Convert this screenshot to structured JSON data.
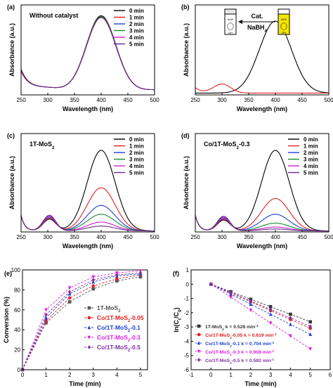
{
  "colors": {
    "0 min": "#000000",
    "1 min": "#e02020",
    "2 min": "#1f3fd8",
    "3 min": "#1a8a3a",
    "4 min": "#d020d0",
    "5 min": "#6a2a8a"
  },
  "chart_data": [
    {
      "panel": "(a)",
      "type": "line",
      "inset_title": "Without catalyst",
      "xlabel": "Wavelength (nm)",
      "ylabel": "Absorbance (a.u.)",
      "xlim": [
        250,
        500
      ],
      "ylim": [
        0,
        1
      ],
      "xticks": [
        "250",
        "300",
        "350",
        "400",
        "450",
        "500"
      ],
      "legend": [
        "0 min",
        "1 min",
        "2 min",
        "3 min",
        "4 min",
        "5 min"
      ],
      "legend_position": "top-right",
      "series": [
        {
          "name": "0 min",
          "peak": 0.86,
          "peak_x": 400,
          "width": 33,
          "baseline": 0.07,
          "dip": 0.05,
          "shoulder_x": 250,
          "start": 0.22
        },
        {
          "name": "1 min",
          "peak": 0.85,
          "peak_x": 400,
          "width": 33,
          "baseline": 0.07,
          "dip": 0.05,
          "shoulder_x": 250,
          "start": 0.21
        },
        {
          "name": "2 min",
          "peak": 0.84,
          "peak_x": 400,
          "width": 33,
          "baseline": 0.07,
          "dip": 0.06,
          "shoulder_x": 250,
          "start": 0.2
        },
        {
          "name": "3 min",
          "peak": 0.85,
          "peak_x": 400,
          "width": 33,
          "baseline": 0.07,
          "dip": 0.06,
          "shoulder_x": 250,
          "start": 0.2
        },
        {
          "name": "4 min",
          "peak": 0.84,
          "peak_x": 400,
          "width": 33,
          "baseline": 0.07,
          "dip": 0.05,
          "shoulder_x": 250,
          "start": 0.2
        },
        {
          "name": "5 min",
          "peak": 0.84,
          "peak_x": 400,
          "width": 33,
          "baseline": 0.07,
          "dip": 0.05,
          "shoulder_x": 250,
          "start": 0.2
        }
      ]
    },
    {
      "panel": "(b)",
      "type": "line",
      "xlabel": "Wavelength (nm)",
      "ylabel": "Absorbance (a.u.)",
      "xlim": [
        250,
        500
      ],
      "ylim": [
        0,
        1
      ],
      "xticks": [
        "250",
        "300",
        "350",
        "400",
        "450",
        "500"
      ],
      "annotation": {
        "reagent_top": "Cat.",
        "reagent_bottom": "NaBH4",
        "vial_label": "NO2",
        "vial_bottom": "OH",
        "product_vial_label": "NH2"
      },
      "series": [
        {
          "name": "reactant",
          "color": "#000000",
          "peak": 0.8,
          "peak_x": 400,
          "width": 33
        },
        {
          "name": "product",
          "color": "#e02020",
          "peak": 0.1,
          "peak_x": 300,
          "width": 18
        }
      ]
    },
    {
      "panel": "(c)",
      "type": "line",
      "inset_title": "1T-MoS2",
      "xlabel": "Wavelength (nm)",
      "ylabel": "Absorbance (a.u.)",
      "xlim": [
        250,
        500
      ],
      "ylim": [
        0,
        1
      ],
      "xticks": [
        "250",
        "300",
        "350",
        "400",
        "450",
        "500"
      ],
      "legend": [
        "0 min",
        "1 min",
        "2 min",
        "3 min",
        "4 min",
        "5 min"
      ],
      "legend_position": "top-right",
      "series": [
        {
          "name": "0 min",
          "peak": 0.82,
          "small_peak": 0.12
        },
        {
          "name": "1 min",
          "peak": 0.44,
          "small_peak": 0.13
        },
        {
          "name": "2 min",
          "peak": 0.26,
          "small_peak": 0.14
        },
        {
          "name": "3 min",
          "peak": 0.17,
          "small_peak": 0.15
        },
        {
          "name": "4 min",
          "peak": 0.09,
          "small_peak": 0.15
        },
        {
          "name": "5 min",
          "peak": 0.05,
          "small_peak": 0.16
        }
      ]
    },
    {
      "panel": "(d)",
      "type": "line",
      "inset_title": "Co/1T-MoS2-0.3",
      "xlabel": "Wavelength (nm)",
      "ylabel": "Absorbance (a.u.)",
      "xlim": [
        250,
        500
      ],
      "ylim": [
        0,
        1
      ],
      "xticks": [
        "250",
        "300",
        "350",
        "400",
        "450",
        "500"
      ],
      "legend": [
        "0 min",
        "1 min",
        "2 min",
        "3 min",
        "4 min",
        "5 min"
      ],
      "legend_position": "top-right",
      "series": [
        {
          "name": "0 min",
          "peak": 0.82,
          "small_peak": 0.11
        },
        {
          "name": "1 min",
          "peak": 0.33,
          "small_peak": 0.12
        },
        {
          "name": "2 min",
          "peak": 0.17,
          "small_peak": 0.13
        },
        {
          "name": "3 min",
          "peak": 0.08,
          "small_peak": 0.14
        },
        {
          "name": "4 min",
          "peak": 0.04,
          "small_peak": 0.14
        },
        {
          "name": "5 min",
          "peak": 0.02,
          "small_peak": 0.15
        }
      ]
    },
    {
      "panel": "(e)",
      "type": "line",
      "xlabel": "Time (min)",
      "ylabel": "Conversion (%)",
      "xlim": [
        0,
        5.3
      ],
      "ylim": [
        0,
        100
      ],
      "xticks": [
        "0",
        "1",
        "2",
        "3",
        "4",
        "5"
      ],
      "yticks": [
        "0",
        "20",
        "40",
        "60",
        "80",
        "100"
      ],
      "x": [
        0,
        1,
        2,
        3,
        4,
        5
      ],
      "legend_position": "center-right",
      "series": [
        {
          "name": "1T-MoS2",
          "color": "#555555",
          "marker": "square",
          "values": [
            0,
            47,
            68,
            81,
            89,
            93
          ]
        },
        {
          "name": "Co/1T-MoS2-0.05",
          "color": "#e02020",
          "marker": "circle",
          "values": [
            0,
            49,
            72,
            84,
            91,
            95
          ]
        },
        {
          "name": "Co/1T-MoS2-0.1",
          "color": "#2040d0",
          "marker": "triangle",
          "values": [
            0,
            52,
            76,
            88,
            94,
            96
          ]
        },
        {
          "name": "Co/1T-MoS2-0.3",
          "color": "#e020e0",
          "marker": "triangle-down",
          "values": [
            0,
            60,
            82,
            93,
            97,
            99
          ]
        },
        {
          "name": "Co/1T-MoS2-0.5",
          "color": "#8030a0",
          "marker": "diamond",
          "values": [
            0,
            55,
            78,
            90,
            95,
            97
          ]
        }
      ]
    },
    {
      "panel": "(f)",
      "type": "line",
      "xlabel": "Time (min)",
      "ylabel": "ln(Ct/C0)",
      "xlim": [
        -1,
        6
      ],
      "ylim": [
        -6,
        1
      ],
      "xticks": [
        "-1",
        "0",
        "1",
        "2",
        "3",
        "4",
        "5",
        "6"
      ],
      "yticks": [
        "1",
        "0",
        "-1",
        "-2",
        "-3",
        "-4",
        "-5",
        "-6"
      ],
      "x": [
        0,
        1,
        2,
        3,
        4,
        5
      ],
      "legend_position": "bottom-left",
      "series": [
        {
          "name": "1T-MoS2",
          "label": "1T-MoS2 k = 0.528 min-1",
          "color": "#333333",
          "marker": "square",
          "values": [
            0,
            -0.53,
            -1.06,
            -1.58,
            -2.11,
            -2.64
          ]
        },
        {
          "name": "Co/1T-MoS2-0.05",
          "label": "Co/1T-MoS2-0.05 k = 0.619 min-1",
          "color": "#e02020",
          "marker": "circle",
          "values": [
            0,
            -0.62,
            -1.24,
            -1.86,
            -2.48,
            -3.1
          ]
        },
        {
          "name": "Co/1T-MoS2-0.1",
          "label": "Co/1T-MoS2-0.1 k = 0.704 min-1",
          "color": "#2040d0",
          "marker": "triangle",
          "values": [
            0,
            -0.7,
            -1.41,
            -2.11,
            -2.82,
            -3.52
          ]
        },
        {
          "name": "Co/1T-MoS2-0.3",
          "label": "Co/1T-MoS2-0.3 k = 0.908 min-1",
          "color": "#e020e0",
          "marker": "triangle-down",
          "values": [
            0,
            -0.91,
            -1.82,
            -2.72,
            -3.63,
            -4.54
          ]
        },
        {
          "name": "Co/1T-MoS2-0.5",
          "label": "Co/1T-MoS2-0.5 k = 0.592 min-1",
          "color": "#8030a0",
          "marker": "diamond",
          "values": [
            0,
            -0.59,
            -1.18,
            -1.78,
            -2.37,
            -2.96
          ]
        }
      ]
    }
  ],
  "labels": {
    "panel_e_legend": [
      "1T-MoS",
      "Co/1T-MoS",
      "Co/1T-MoS",
      "Co/1T-MoS",
      "Co/1T-MoS"
    ],
    "panel_e_suffix": [
      "2",
      "2-0.05",
      "2-0.1",
      "2-0.3",
      "2-0.5"
    ]
  }
}
